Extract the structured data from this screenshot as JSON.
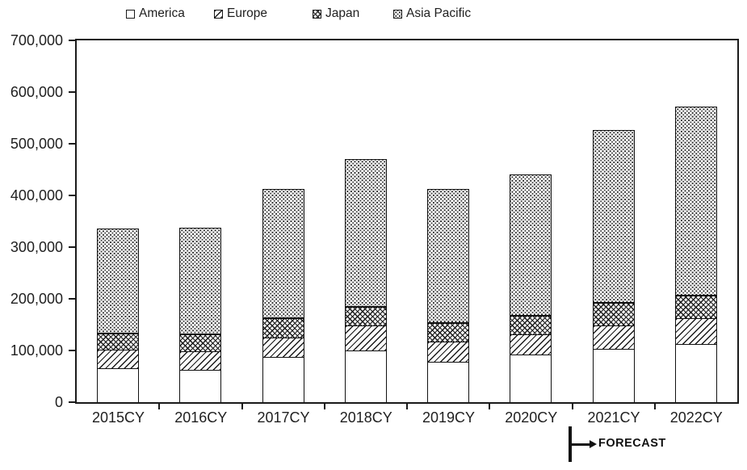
{
  "colors": {
    "stroke": "#1a1a1a",
    "background": "#ffffff"
  },
  "chart_data": {
    "type": "bar",
    "stacked": true,
    "title": "",
    "xlabel": "",
    "ylabel": "",
    "categories": [
      "2015CY",
      "2016CY",
      "2017CY",
      "2018CY",
      "2019CY",
      "2020CY",
      "2021CY",
      "2022CY"
    ],
    "series": [
      {
        "name": "America",
        "pattern": "plain",
        "values": [
          66000,
          62000,
          88000,
          100000,
          78000,
          93000,
          103000,
          112000
        ]
      },
      {
        "name": "Europe",
        "pattern": "diagonal-hatch",
        "values": [
          35000,
          36000,
          36000,
          47000,
          39000,
          37000,
          45000,
          50000
        ]
      },
      {
        "name": "Japan",
        "pattern": "cross-hatch",
        "values": [
          30000,
          31000,
          37000,
          35000,
          34000,
          35000,
          42000,
          43000
        ]
      },
      {
        "name": "Asia Pacific",
        "pattern": "dots",
        "values": [
          205000,
          209000,
          251000,
          288000,
          261000,
          276000,
          337000,
          367000
        ]
      }
    ],
    "totals": [
      336000,
      338000,
      412000,
      470000,
      412000,
      441000,
      527000,
      572000
    ],
    "ylim": [
      0,
      700000
    ],
    "ytick_interval": 100000,
    "ytick_labels": [
      "700,000",
      "600,000",
      "500,000",
      "400,000",
      "300,000",
      "200,000",
      "100,000",
      "0"
    ],
    "grid": false,
    "legend_position": "top",
    "annotation": {
      "label": "FORECAST",
      "at_category": "2021CY"
    }
  }
}
